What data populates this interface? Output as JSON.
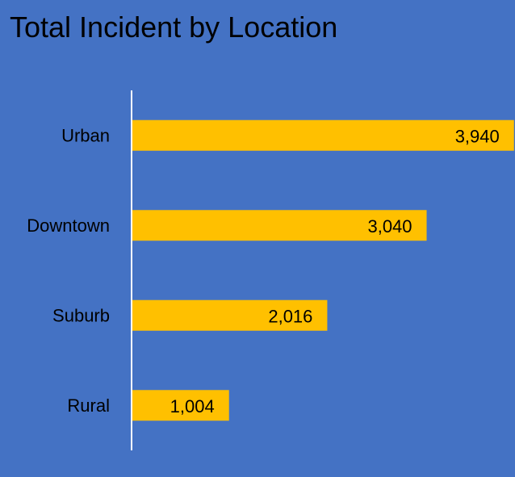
{
  "chart_data": {
    "type": "bar",
    "orientation": "horizontal",
    "title": "Total Incident by Location",
    "categories": [
      "Urban",
      "Downtown",
      "Suburb",
      "Rural"
    ],
    "values": [
      3940,
      3040,
      2016,
      1004
    ],
    "value_labels": [
      "3,940",
      "3,040",
      "2,016",
      "1,004"
    ],
    "xlim": [
      0,
      4940
    ],
    "grid": false,
    "legend": "none",
    "colors": {
      "background": "#4472C4",
      "bar": "#FFC000",
      "axis": "#FFFFFF",
      "text": "#000000"
    }
  }
}
